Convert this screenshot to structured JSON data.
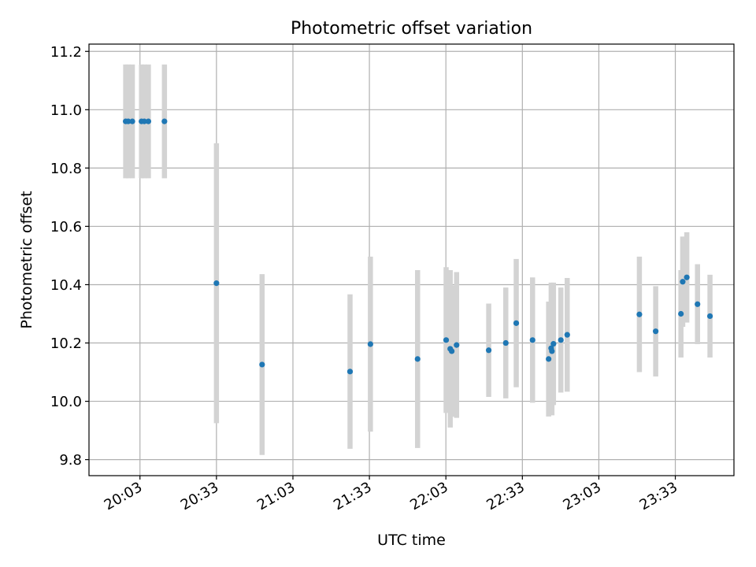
{
  "chart_data": {
    "type": "scatter",
    "title": "Photometric offset variation",
    "xlabel": "UTC time",
    "ylabel": "Photometric offset",
    "x_unit": "minutes after 20:00 UTC",
    "xlim": [
      -17,
      236
    ],
    "ylim": [
      9.745,
      11.225
    ],
    "x_ticks": [
      {
        "value": 3,
        "label": "20:03"
      },
      {
        "value": 33,
        "label": "20:33"
      },
      {
        "value": 63,
        "label": "21:03"
      },
      {
        "value": 93,
        "label": "21:33"
      },
      {
        "value": 123,
        "label": "22:03"
      },
      {
        "value": 153,
        "label": "22:33"
      },
      {
        "value": 183,
        "label": "23:03"
      },
      {
        "value": 213,
        "label": "23:33"
      }
    ],
    "y_ticks": [
      {
        "value": 9.8,
        "label": "9.8"
      },
      {
        "value": 10.0,
        "label": "10.0"
      },
      {
        "value": 10.2,
        "label": "10.2"
      },
      {
        "value": 10.4,
        "label": "10.4"
      },
      {
        "value": 10.6,
        "label": "10.6"
      },
      {
        "value": 10.8,
        "label": "10.8"
      },
      {
        "value": 11.0,
        "label": "11.0"
      },
      {
        "value": 11.2,
        "label": "11.2"
      }
    ],
    "grid": true,
    "colors": {
      "points": "#1f77b4",
      "errorbars": "#d3d3d3",
      "grid": "#b0b0b0"
    },
    "points": [
      {
        "x": -2.6,
        "y": 10.96,
        "err": 0.195
      },
      {
        "x": -1.6,
        "y": 10.96,
        "err": 0.195
      },
      {
        "x": 0.0,
        "y": 10.96,
        "err": 0.195
      },
      {
        "x": 3.6,
        "y": 10.96,
        "err": 0.195
      },
      {
        "x": 4.7,
        "y": 10.96,
        "err": 0.195
      },
      {
        "x": 6.3,
        "y": 10.96,
        "err": 0.195
      },
      {
        "x": 12.6,
        "y": 10.96,
        "err": 0.195
      },
      {
        "x": 33.0,
        "y": 10.405,
        "err": 0.48
      },
      {
        "x": 50.9,
        "y": 10.126,
        "err": 0.31
      },
      {
        "x": 85.4,
        "y": 10.102,
        "err": 0.265
      },
      {
        "x": 93.4,
        "y": 10.196,
        "err": 0.3
      },
      {
        "x": 111.9,
        "y": 10.145,
        "err": 0.305
      },
      {
        "x": 123.1,
        "y": 10.21,
        "err": 0.25
      },
      {
        "x": 124.7,
        "y": 10.18,
        "err": 0.27
      },
      {
        "x": 125.3,
        "y": 10.172,
        "err": 0.225
      },
      {
        "x": 127.2,
        "y": 10.193,
        "err": 0.25
      },
      {
        "x": 139.8,
        "y": 10.175,
        "err": 0.16
      },
      {
        "x": 146.5,
        "y": 10.2,
        "err": 0.19
      },
      {
        "x": 150.6,
        "y": 10.268,
        "err": 0.22
      },
      {
        "x": 157.0,
        "y": 10.21,
        "err": 0.215
      },
      {
        "x": 163.3,
        "y": 10.145,
        "err": 0.197
      },
      {
        "x": 164.3,
        "y": 10.182,
        "err": 0.225
      },
      {
        "x": 164.6,
        "y": 10.172,
        "err": 0.22
      },
      {
        "x": 165.2,
        "y": 10.197,
        "err": 0.21
      },
      {
        "x": 168.1,
        "y": 10.21,
        "err": 0.18
      },
      {
        "x": 170.6,
        "y": 10.228,
        "err": 0.195
      },
      {
        "x": 198.9,
        "y": 10.298,
        "err": 0.198
      },
      {
        "x": 205.3,
        "y": 10.24,
        "err": 0.155
      },
      {
        "x": 215.2,
        "y": 10.3,
        "err": 0.15
      },
      {
        "x": 215.9,
        "y": 10.41,
        "err": 0.155
      },
      {
        "x": 217.5,
        "y": 10.425,
        "err": 0.155
      },
      {
        "x": 221.7,
        "y": 10.333,
        "err": 0.137
      },
      {
        "x": 226.6,
        "y": 10.292,
        "err": 0.142
      }
    ]
  }
}
